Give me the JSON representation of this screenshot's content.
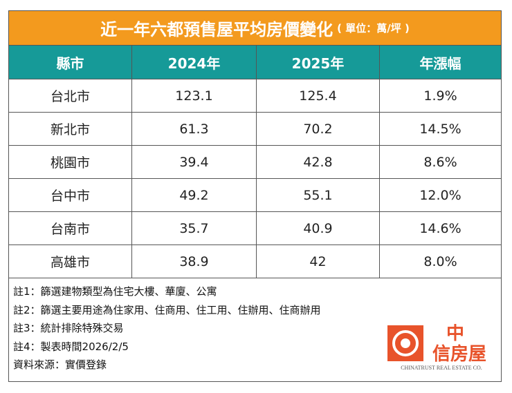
{
  "header": {
    "title": "近一年六都預售屋平均房價變化",
    "unit": "( 單位：萬/坪 )"
  },
  "table": {
    "columns": [
      "縣市",
      "2024年",
      "2025年",
      "年漲幅"
    ],
    "rows": [
      [
        "台北市",
        "123.1",
        "125.4",
        "1.9%"
      ],
      [
        "新北市",
        "61.3",
        "70.2",
        "14.5%"
      ],
      [
        "桃園市",
        "39.4",
        "42.8",
        "8.6%"
      ],
      [
        "台中市",
        "49.2",
        "55.1",
        "12.0%"
      ],
      [
        "台南市",
        "35.7",
        "40.9",
        "14.6%"
      ],
      [
        "高雄市",
        "38.9",
        "42",
        "8.0%"
      ]
    ]
  },
  "notes": [
    "註1：篩選建物類型為住宅大樓、華廈、公寓",
    "註2：篩選主要用途為住家用、住商用、住工用、住辦用、住商辦用",
    "註3：統計排除特殊交易",
    "註4：製表時間2026/2/5",
    "資料來源：實價登錄"
  ],
  "logo": {
    "name_top": "中",
    "name_bottom": "信房屋",
    "english": "CHINATRUST REAL ESTATE CO."
  }
}
